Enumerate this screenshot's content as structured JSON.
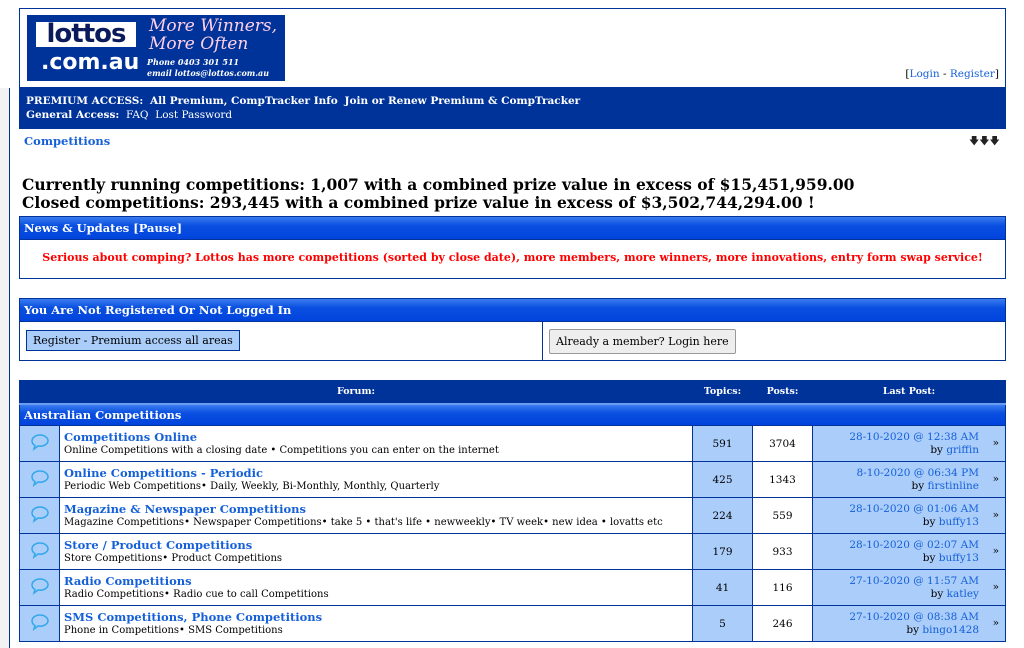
{
  "logo": {
    "name": "lottos",
    "domain": ".com.au",
    "tagline1": "More Winners,",
    "tagline2": "More Often",
    "phone": "Phone 0403 301 511",
    "email": "email lottos@lottos.com.au"
  },
  "auth": {
    "login": "Login",
    "register": "Register"
  },
  "nav": {
    "premium_label": "PREMIUM ACCESS:",
    "premium_links": [
      "All Premium, CompTracker Info",
      "Join or Renew Premium & CompTracker"
    ],
    "general_label": "General Access:",
    "general_links": [
      "FAQ",
      "Lost Password"
    ]
  },
  "breadcrumb": "Competitions",
  "stats": {
    "running": "Currently running competitions: 1,007 with a combined prize value in excess of $15,451,959.00",
    "closed": "Closed competitions: 293,445 with a combined prize value in excess of $3,502,744,294.00 !"
  },
  "news": {
    "title": "News & Updates [Pause]",
    "message": "Serious about comping? Lottos has more competitions (sorted by close date), more members, more winners, more innovations, entry form swap service!"
  },
  "notreg": {
    "title": "You Are Not Registered Or Not Logged In",
    "register_button": "Register - Premium access all areas",
    "login_button": "Already a member? Login here"
  },
  "forum": {
    "headers": {
      "forum": "Forum:",
      "topics": "Topics:",
      "posts": "Posts:",
      "lastpost": "Last Post:"
    },
    "category": "Australian Competitions",
    "rows": [
      {
        "title": "Competitions Online",
        "desc": "Online Competitions with a closing date • Competitions you can enter on the internet",
        "topics": "591",
        "posts": "3704",
        "date": "28-10-2020 @ 12:38 AM",
        "by": "by",
        "user": "griffin"
      },
      {
        "title": "Online Competitions - Periodic",
        "desc": "Periodic Web Competitions• Daily, Weekly, Bi-Monthly, Monthly, Quarterly",
        "topics": "425",
        "posts": "1343",
        "date": "8-10-2020 @ 06:34 PM",
        "by": "by",
        "user": "firstinline"
      },
      {
        "title": "Magazine & Newspaper Competitions",
        "desc": "Magazine Competitions• Newspaper Competitions• take 5 • that's life • newweekly• TV week• new idea • lovatts etc",
        "topics": "224",
        "posts": "559",
        "date": "28-10-2020 @ 01:06 AM",
        "by": "by",
        "user": "buffy13"
      },
      {
        "title": "Store / Product Competitions",
        "desc": "Store Competitions• Product Competitions",
        "topics": "179",
        "posts": "933",
        "date": "28-10-2020 @ 02:07 AM",
        "by": "by",
        "user": "buffy13"
      },
      {
        "title": "Radio Competitions",
        "desc": "Radio Competitions• Radio cue to call Competitions",
        "topics": "41",
        "posts": "116",
        "date": "27-10-2020 @ 11:57 AM",
        "by": "by",
        "user": "katley"
      },
      {
        "title": "SMS Competitions, Phone Competitions",
        "desc": "Phone in Competitions• SMS Competitions",
        "topics": "5",
        "posts": "246",
        "date": "27-10-2020 @ 08:38 AM",
        "by": "by",
        "user": "bingo1428"
      }
    ]
  }
}
